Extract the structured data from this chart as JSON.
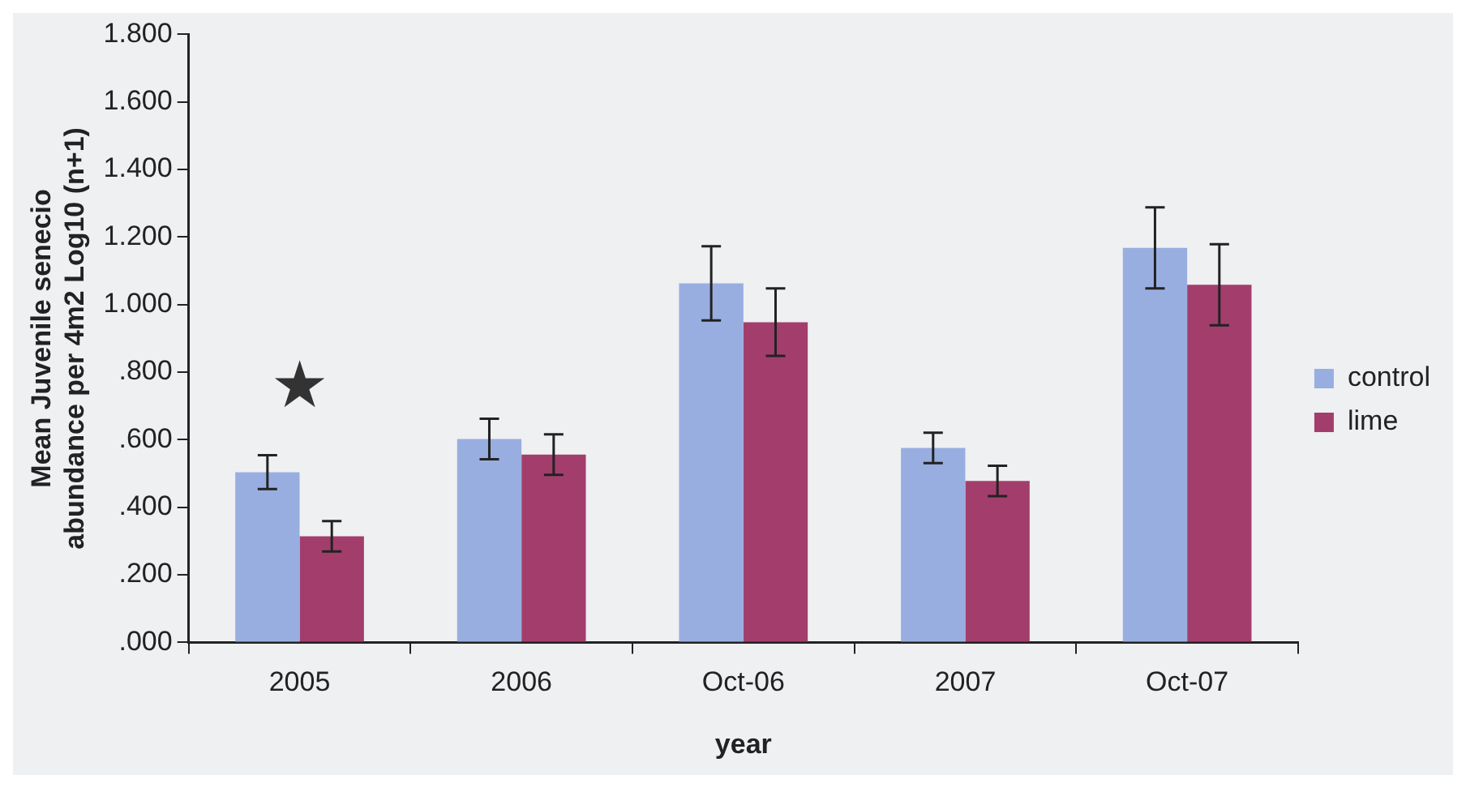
{
  "chart_data": {
    "type": "bar",
    "xlabel": "year",
    "ylabel": "Mean Juvenile senecio\nabundance per 4m2 Log10 (n+1)",
    "categories": [
      "2005",
      "2006",
      "Oct-06",
      "2007",
      "Oct-07"
    ],
    "series": [
      {
        "name": "control",
        "color": "#99aee0",
        "values": [
          0.504,
          0.602,
          1.063,
          0.576,
          1.168
        ],
        "errors": [
          0.05,
          0.06,
          0.11,
          0.045,
          0.12
        ]
      },
      {
        "name": "lime",
        "color": "#a33e6c",
        "values": [
          0.314,
          0.556,
          0.948,
          0.478,
          1.059
        ],
        "errors": [
          0.045,
          0.06,
          0.1,
          0.045,
          0.12
        ]
      }
    ],
    "ylim": [
      0,
      1.8
    ],
    "yticks": [
      {
        "value": 0,
        "label": ".000"
      },
      {
        "value": 0.2,
        "label": ".200"
      },
      {
        "value": 0.4,
        "label": ".400"
      },
      {
        "value": 0.6,
        "label": ".600"
      },
      {
        "value": 0.8,
        "label": ".800"
      },
      {
        "value": 1,
        "label": "1.000"
      },
      {
        "value": 1.2,
        "label": "1.200"
      },
      {
        "value": 1.4,
        "label": "1.400"
      },
      {
        "value": 1.6,
        "label": "1.600"
      },
      {
        "value": 1.8,
        "label": "1.800"
      }
    ],
    "annotations": [
      "★"
    ],
    "grid": false,
    "legend": "right"
  }
}
